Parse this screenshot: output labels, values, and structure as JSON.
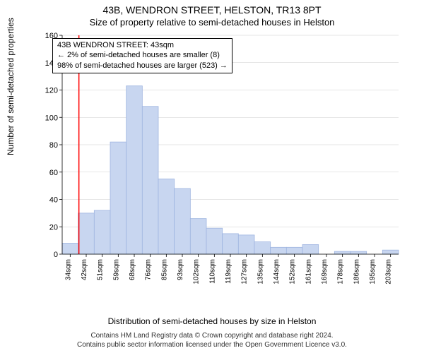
{
  "title": "43B, WENDRON STREET, HELSTON, TR13 8PT",
  "subtitle": "Size of property relative to semi-detached houses in Helston",
  "y_label": "Number of semi-detached properties",
  "x_label": "Distribution of semi-detached houses by size in Helston",
  "footer_line1": "Contains HM Land Registry data © Crown copyright and database right 2024.",
  "footer_line2": "Contains public sector information licensed under the Open Government Licence v3.0.",
  "annotation": {
    "line1": "43B WENDRON STREET: 43sqm",
    "line2": "← 2% of semi-detached houses are smaller (8)",
    "line3": "98% of semi-detached houses are larger (523) →"
  },
  "chart": {
    "type": "histogram",
    "ylim": [
      0,
      160
    ],
    "ytick_step": 20,
    "x_categories": [
      "34sqm",
      "42sqm",
      "51sqm",
      "59sqm",
      "68sqm",
      "76sqm",
      "85sqm",
      "93sqm",
      "102sqm",
      "110sqm",
      "119sqm",
      "127sqm",
      "135sqm",
      "144sqm",
      "152sqm",
      "161sqm",
      "169sqm",
      "178sqm",
      "186sqm",
      "195sqm",
      "203sqm"
    ],
    "values": [
      8,
      30,
      32,
      82,
      123,
      108,
      55,
      48,
      26,
      19,
      15,
      14,
      9,
      5,
      5,
      7,
      0,
      2,
      2,
      0,
      3
    ],
    "bar_fill": "#c8d6f0",
    "bar_stroke": "#9fb5e0",
    "marker_x_index": 1,
    "marker_color": "#ff0000",
    "grid_color": "#cccccc",
    "axis_color": "#000000",
    "background": "#ffffff",
    "label_fontsize": 12,
    "tick_fontsize": 11
  }
}
